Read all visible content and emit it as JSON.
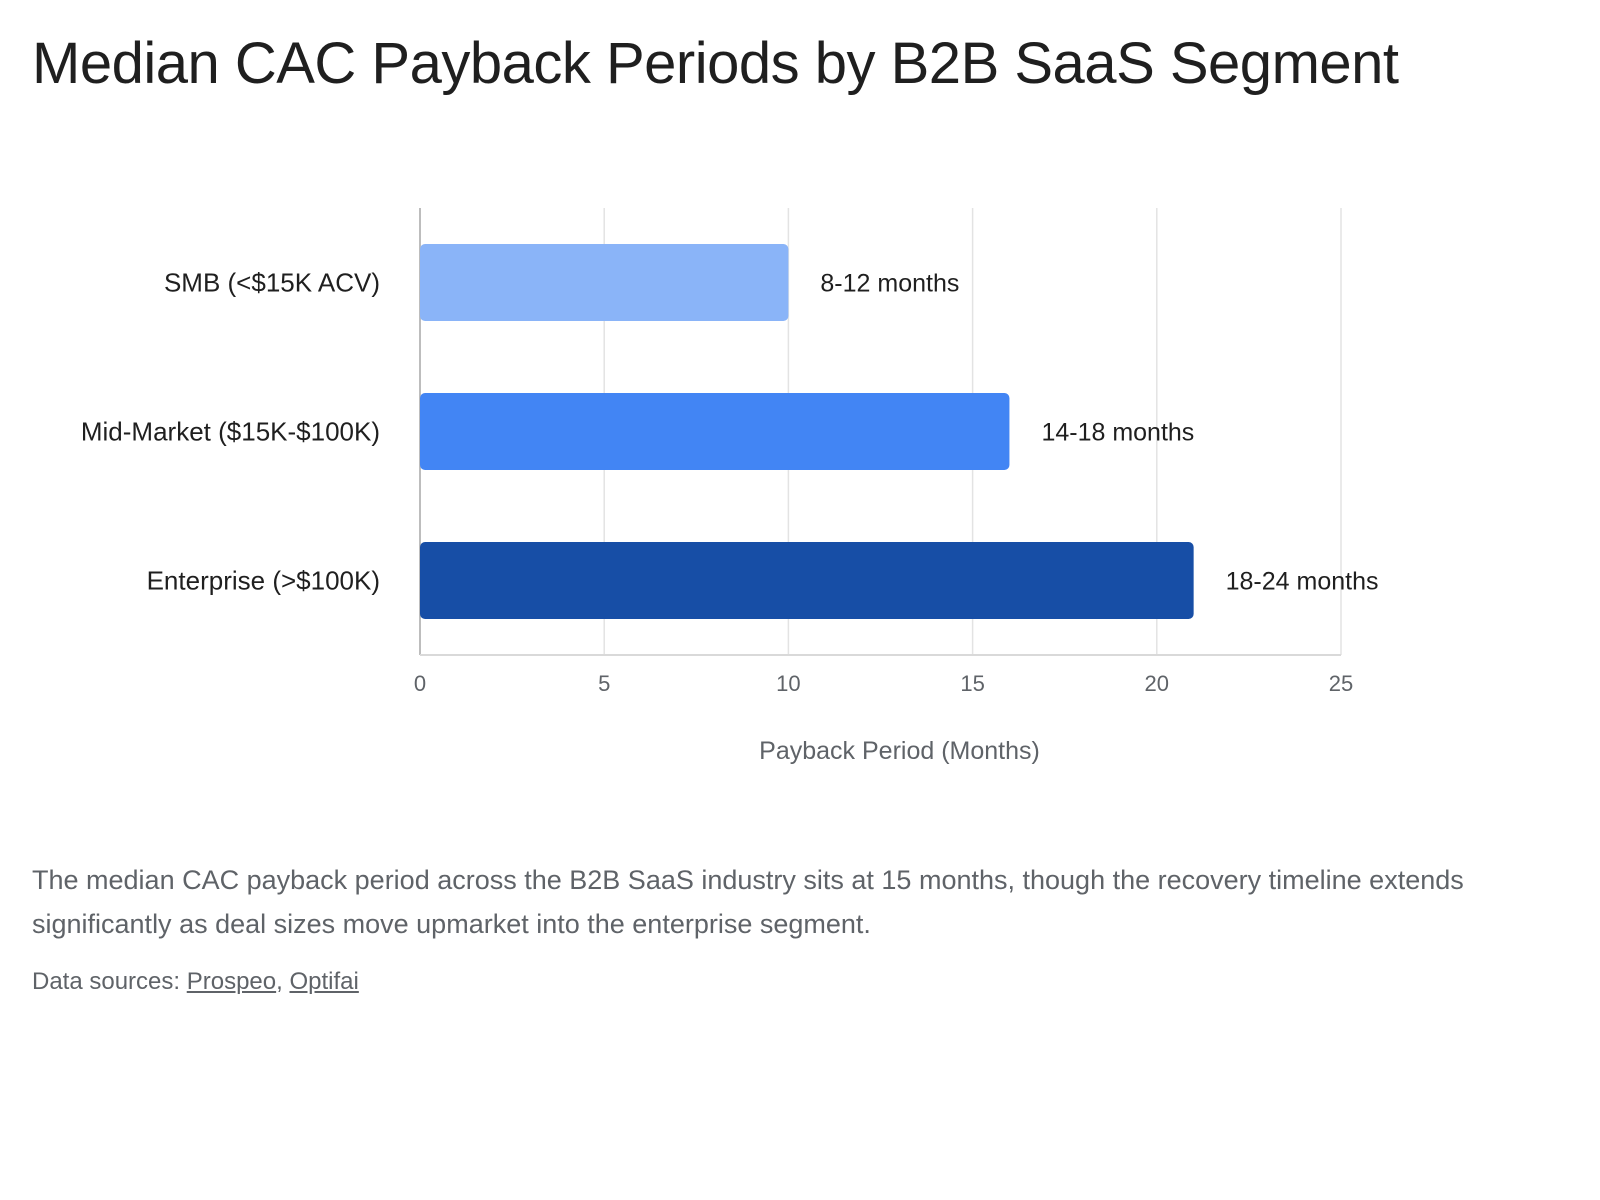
{
  "title": "Median CAC Payback Periods by B2B SaaS Segment",
  "chart_data": {
    "type": "bar",
    "orientation": "horizontal",
    "categories": [
      "SMB (<$15K ACV)",
      "Mid-Market ($15K-$100K)",
      "Enterprise (>$100K)"
    ],
    "values": [
      10,
      16,
      21
    ],
    "data_labels": [
      "8-12 months",
      "14-18 months",
      "18-24 months"
    ],
    "colors": [
      "#8ab4f8",
      "#4285f4",
      "#174ea6"
    ],
    "xlabel": "Payback Period (Months)",
    "ylabel": "",
    "xlim": [
      0,
      25
    ],
    "xticks": [
      0,
      5,
      10,
      15,
      20,
      25
    ],
    "grid": true,
    "legend": "none"
  },
  "description": "The median CAC payback period across the B2B SaaS industry sits at 15 months, though the recovery timeline extends significantly as deal sizes move upmarket into the enterprise segment.",
  "sources": {
    "prefix": "Data sources: ",
    "separator": ", ",
    "links": [
      "Prospeo",
      "Optifai"
    ]
  }
}
